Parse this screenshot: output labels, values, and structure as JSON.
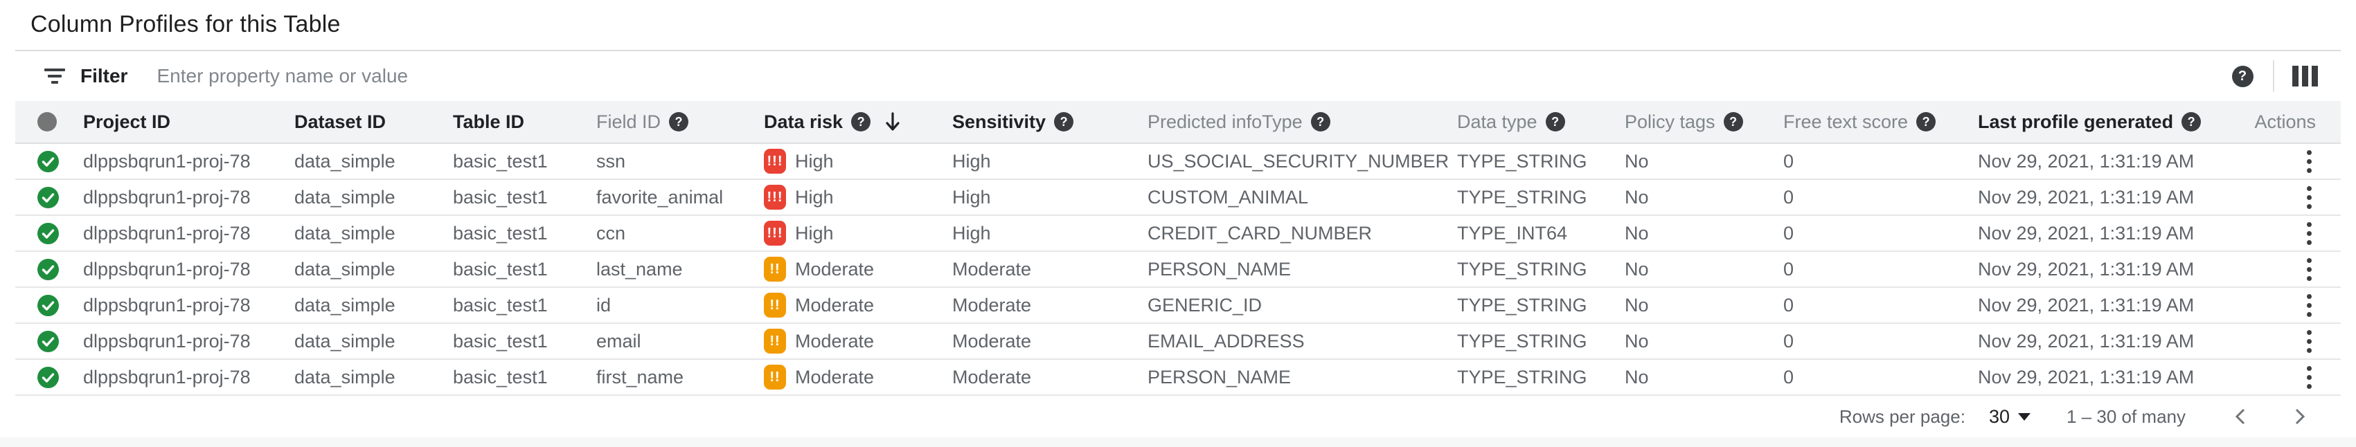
{
  "page": {
    "title": "Column Profiles for this Table"
  },
  "filter": {
    "label": "Filter",
    "placeholder": "Enter property name or value"
  },
  "toolbar_icons": {
    "filter": "filter-list",
    "help": "help-circle",
    "columns": "column-selector"
  },
  "colors": {
    "risk_high": "#E94235",
    "risk_moderate": "#F29B00",
    "status_ok": "#1E8E3E",
    "header_bg": "#F1F3F4",
    "divider": "#E0E0E0",
    "text_primary": "#202124",
    "text_secondary": "#5F6368",
    "text_muted": "#80868B"
  },
  "table": {
    "columns": [
      {
        "id": "status",
        "label": "",
        "help": false,
        "emphasis": false,
        "sort": null,
        "type": "icon"
      },
      {
        "id": "project_id",
        "label": "Project ID",
        "help": false,
        "emphasis": true,
        "sort": null
      },
      {
        "id": "dataset_id",
        "label": "Dataset ID",
        "help": false,
        "emphasis": true,
        "sort": null
      },
      {
        "id": "table_id",
        "label": "Table ID",
        "help": false,
        "emphasis": true,
        "sort": null
      },
      {
        "id": "field_id",
        "label": "Field ID",
        "help": true,
        "emphasis": false,
        "sort": null
      },
      {
        "id": "data_risk",
        "label": "Data risk",
        "help": true,
        "emphasis": true,
        "sort": "desc"
      },
      {
        "id": "sensitivity",
        "label": "Sensitivity",
        "help": true,
        "emphasis": true,
        "sort": null
      },
      {
        "id": "predicted_infotype",
        "label": "Predicted infoType",
        "help": true,
        "emphasis": false,
        "sort": null
      },
      {
        "id": "data_type",
        "label": "Data type",
        "help": true,
        "emphasis": false,
        "sort": null
      },
      {
        "id": "policy_tags",
        "label": "Policy tags",
        "help": true,
        "emphasis": false,
        "sort": null
      },
      {
        "id": "free_text_score",
        "label": "Free text score",
        "help": true,
        "emphasis": false,
        "sort": null
      },
      {
        "id": "last_profile_generated",
        "label": "Last profile generated",
        "help": true,
        "emphasis": true,
        "sort": null
      },
      {
        "id": "actions",
        "label": "Actions",
        "help": false,
        "emphasis": false,
        "sort": null,
        "type": "actions"
      }
    ],
    "risk_badges": {
      "high": {
        "marks": "!!!",
        "label": "High"
      },
      "moderate": {
        "marks": "!!",
        "label": "Moderate"
      }
    },
    "rows": [
      {
        "status": "ok",
        "project_id": "dlppsbqrun1-proj-78",
        "dataset_id": "data_simple",
        "table_id": "basic_test1",
        "field_id": "ssn",
        "risk_level": "high",
        "risk_label": "High",
        "sensitivity": "High",
        "predicted_infotype": "US_SOCIAL_SECURITY_NUMBER",
        "data_type": "TYPE_STRING",
        "policy_tags": "No",
        "free_text_score": "0",
        "last_profile_generated": "Nov 29, 2021, 1:31:19 AM"
      },
      {
        "status": "ok",
        "project_id": "dlppsbqrun1-proj-78",
        "dataset_id": "data_simple",
        "table_id": "basic_test1",
        "field_id": "favorite_animal",
        "risk_level": "high",
        "risk_label": "High",
        "sensitivity": "High",
        "predicted_infotype": "CUSTOM_ANIMAL",
        "data_type": "TYPE_STRING",
        "policy_tags": "No",
        "free_text_score": "0",
        "last_profile_generated": "Nov 29, 2021, 1:31:19 AM"
      },
      {
        "status": "ok",
        "project_id": "dlppsbqrun1-proj-78",
        "dataset_id": "data_simple",
        "table_id": "basic_test1",
        "field_id": "ccn",
        "risk_level": "high",
        "risk_label": "High",
        "sensitivity": "High",
        "predicted_infotype": "CREDIT_CARD_NUMBER",
        "data_type": "TYPE_INT64",
        "policy_tags": "No",
        "free_text_score": "0",
        "last_profile_generated": "Nov 29, 2021, 1:31:19 AM"
      },
      {
        "status": "ok",
        "project_id": "dlppsbqrun1-proj-78",
        "dataset_id": "data_simple",
        "table_id": "basic_test1",
        "field_id": "last_name",
        "risk_level": "moderate",
        "risk_label": "Moderate",
        "sensitivity": "Moderate",
        "predicted_infotype": "PERSON_NAME",
        "data_type": "TYPE_STRING",
        "policy_tags": "No",
        "free_text_score": "0",
        "last_profile_generated": "Nov 29, 2021, 1:31:19 AM"
      },
      {
        "status": "ok",
        "project_id": "dlppsbqrun1-proj-78",
        "dataset_id": "data_simple",
        "table_id": "basic_test1",
        "field_id": "id",
        "risk_level": "moderate",
        "risk_label": "Moderate",
        "sensitivity": "Moderate",
        "predicted_infotype": "GENERIC_ID",
        "data_type": "TYPE_STRING",
        "policy_tags": "No",
        "free_text_score": "0",
        "last_profile_generated": "Nov 29, 2021, 1:31:19 AM"
      },
      {
        "status": "ok",
        "project_id": "dlppsbqrun1-proj-78",
        "dataset_id": "data_simple",
        "table_id": "basic_test1",
        "field_id": "email",
        "risk_level": "moderate",
        "risk_label": "Moderate",
        "sensitivity": "Moderate",
        "predicted_infotype": "EMAIL_ADDRESS",
        "data_type": "TYPE_STRING",
        "policy_tags": "No",
        "free_text_score": "0",
        "last_profile_generated": "Nov 29, 2021, 1:31:19 AM"
      },
      {
        "status": "ok",
        "project_id": "dlppsbqrun1-proj-78",
        "dataset_id": "data_simple",
        "table_id": "basic_test1",
        "field_id": "first_name",
        "risk_level": "moderate",
        "risk_label": "Moderate",
        "sensitivity": "Moderate",
        "predicted_infotype": "PERSON_NAME",
        "data_type": "TYPE_STRING",
        "policy_tags": "No",
        "free_text_score": "0",
        "last_profile_generated": "Nov 29, 2021, 1:31:19 AM"
      }
    ]
  },
  "pagination": {
    "rows_per_page_label": "Rows per page:",
    "rows_per_page_value": "30",
    "range_label": "1 – 30 of many"
  }
}
